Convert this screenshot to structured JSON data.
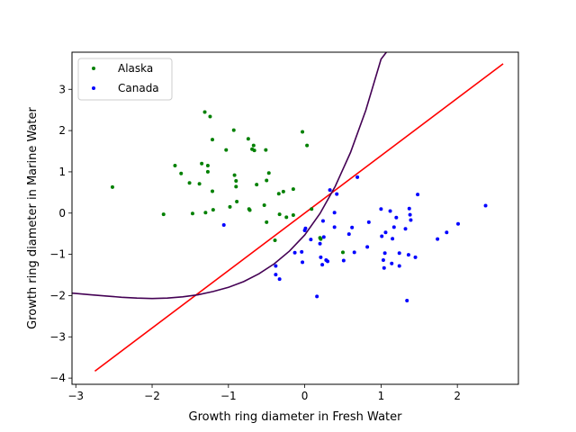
{
  "chart_data": {
    "type": "scatter",
    "title": "",
    "xlabel": "Growth ring diameter in Fresh Water",
    "ylabel": "Growth ring diameter in Marine Water",
    "xlim": [
      -3.05,
      2.8
    ],
    "ylim": [
      -4.15,
      3.9
    ],
    "xticks": [
      -3,
      -2,
      -1,
      0,
      1,
      2
    ],
    "yticks": [
      -4,
      -3,
      -2,
      -1,
      0,
      1,
      2,
      3
    ],
    "grid": false,
    "legend_position": "top-left",
    "series": [
      {
        "name": "Alaska",
        "kind": "points",
        "color": "#008000",
        "points": [
          [
            -2.52,
            0.63
          ],
          [
            -1.85,
            -0.03
          ],
          [
            -1.7,
            1.15
          ],
          [
            -1.62,
            0.96
          ],
          [
            -1.51,
            0.73
          ],
          [
            -1.47,
            -0.01
          ],
          [
            -1.38,
            0.71
          ],
          [
            -1.35,
            1.2
          ],
          [
            -1.31,
            2.45
          ],
          [
            -1.3,
            0.01
          ],
          [
            -1.27,
            1.15
          ],
          [
            -1.27,
            1.0
          ],
          [
            -1.24,
            2.34
          ],
          [
            -1.21,
            1.78
          ],
          [
            -1.21,
            0.53
          ],
          [
            -1.2,
            0.08
          ],
          [
            -1.03,
            1.53
          ],
          [
            -0.98,
            0.15
          ],
          [
            -0.93,
            2.01
          ],
          [
            -0.92,
            0.92
          ],
          [
            -0.9,
            0.78
          ],
          [
            -0.9,
            0.64
          ],
          [
            -0.89,
            0.28
          ],
          [
            -0.74,
            1.8
          ],
          [
            -0.73,
            0.1
          ],
          [
            -0.72,
            0.07
          ],
          [
            -0.69,
            1.55
          ],
          [
            -0.67,
            1.64
          ],
          [
            -0.66,
            1.52
          ],
          [
            -0.63,
            0.69
          ],
          [
            -0.53,
            0.19
          ],
          [
            -0.51,
            1.53
          ],
          [
            -0.5,
            0.79
          ],
          [
            -0.5,
            -0.22
          ],
          [
            -0.47,
            0.97
          ],
          [
            -0.39,
            -0.66
          ],
          [
            -0.34,
            0.47
          ],
          [
            -0.33,
            -0.03
          ],
          [
            -0.28,
            0.52
          ],
          [
            -0.24,
            -0.1
          ],
          [
            -0.15,
            0.58
          ],
          [
            -0.15,
            -0.05
          ],
          [
            -0.03,
            1.97
          ],
          [
            0.03,
            1.64
          ],
          [
            0.09,
            0.1
          ],
          [
            0.2,
            -0.6
          ],
          [
            0.21,
            -0.63
          ],
          [
            0.5,
            -0.95
          ]
        ]
      },
      {
        "name": "Canada",
        "kind": "points",
        "color": "#0000ff",
        "points": [
          [
            -1.06,
            -0.29
          ],
          [
            -0.38,
            -1.28
          ],
          [
            -0.38,
            -1.49
          ],
          [
            -0.33,
            -1.6
          ],
          [
            -0.13,
            -0.96
          ],
          [
            -0.04,
            -0.94
          ],
          [
            -0.03,
            -1.19
          ],
          [
            0.0,
            -0.42
          ],
          [
            0.01,
            -0.37
          ],
          [
            0.08,
            -0.64
          ],
          [
            0.16,
            -2.02
          ],
          [
            0.2,
            -0.74
          ],
          [
            0.21,
            -1.07
          ],
          [
            0.23,
            -1.25
          ],
          [
            0.24,
            -0.19
          ],
          [
            0.25,
            -0.58
          ],
          [
            0.28,
            -1.14
          ],
          [
            0.3,
            -1.17
          ],
          [
            0.33,
            0.56
          ],
          [
            0.39,
            0.01
          ],
          [
            0.39,
            -0.34
          ],
          [
            0.42,
            0.46
          ],
          [
            0.51,
            -1.15
          ],
          [
            0.58,
            -0.51
          ],
          [
            0.62,
            -0.35
          ],
          [
            0.65,
            -0.95
          ],
          [
            0.69,
            0.87
          ],
          [
            0.82,
            -0.82
          ],
          [
            0.84,
            -0.22
          ],
          [
            1.0,
            0.1
          ],
          [
            1.01,
            -0.56
          ],
          [
            1.03,
            -1.14
          ],
          [
            1.04,
            -1.33
          ],
          [
            1.05,
            -0.97
          ],
          [
            1.06,
            -0.47
          ],
          [
            1.12,
            0.05
          ],
          [
            1.14,
            -1.22
          ],
          [
            1.15,
            -0.62
          ],
          [
            1.17,
            -0.34
          ],
          [
            1.2,
            -0.11
          ],
          [
            1.24,
            -1.28
          ],
          [
            1.24,
            -0.97
          ],
          [
            1.32,
            -0.38
          ],
          [
            1.34,
            -2.12
          ],
          [
            1.36,
            -1.01
          ],
          [
            1.37,
            0.11
          ],
          [
            1.38,
            -0.04
          ],
          [
            1.39,
            -0.17
          ],
          [
            1.45,
            -1.07
          ],
          [
            1.48,
            0.45
          ],
          [
            1.74,
            -0.63
          ],
          [
            1.86,
            -0.47
          ],
          [
            2.01,
            -0.26
          ],
          [
            2.37,
            0.18
          ]
        ]
      }
    ],
    "curves": [
      {
        "kind": "line",
        "color": "#ff0000",
        "x": [
          -2.75,
          2.6
        ],
        "y": [
          -3.83,
          3.62
        ]
      },
      {
        "kind": "curve",
        "color": "#440154",
        "x": [
          -3.05,
          -2.8,
          -2.6,
          -2.4,
          -2.2,
          -2.0,
          -1.8,
          -1.6,
          -1.4,
          -1.2,
          -1.0,
          -0.8,
          -0.6,
          -0.4,
          -0.2,
          0.0,
          0.2,
          0.4,
          0.6,
          0.8,
          1.0,
          1.07
        ],
        "y": [
          -1.94,
          -1.98,
          -2.01,
          -2.04,
          -2.06,
          -2.07,
          -2.06,
          -2.03,
          -1.98,
          -1.9,
          -1.8,
          -1.66,
          -1.47,
          -1.23,
          -0.92,
          -0.53,
          -0.01,
          0.65,
          1.47,
          2.49,
          3.73,
          3.9
        ]
      }
    ]
  }
}
